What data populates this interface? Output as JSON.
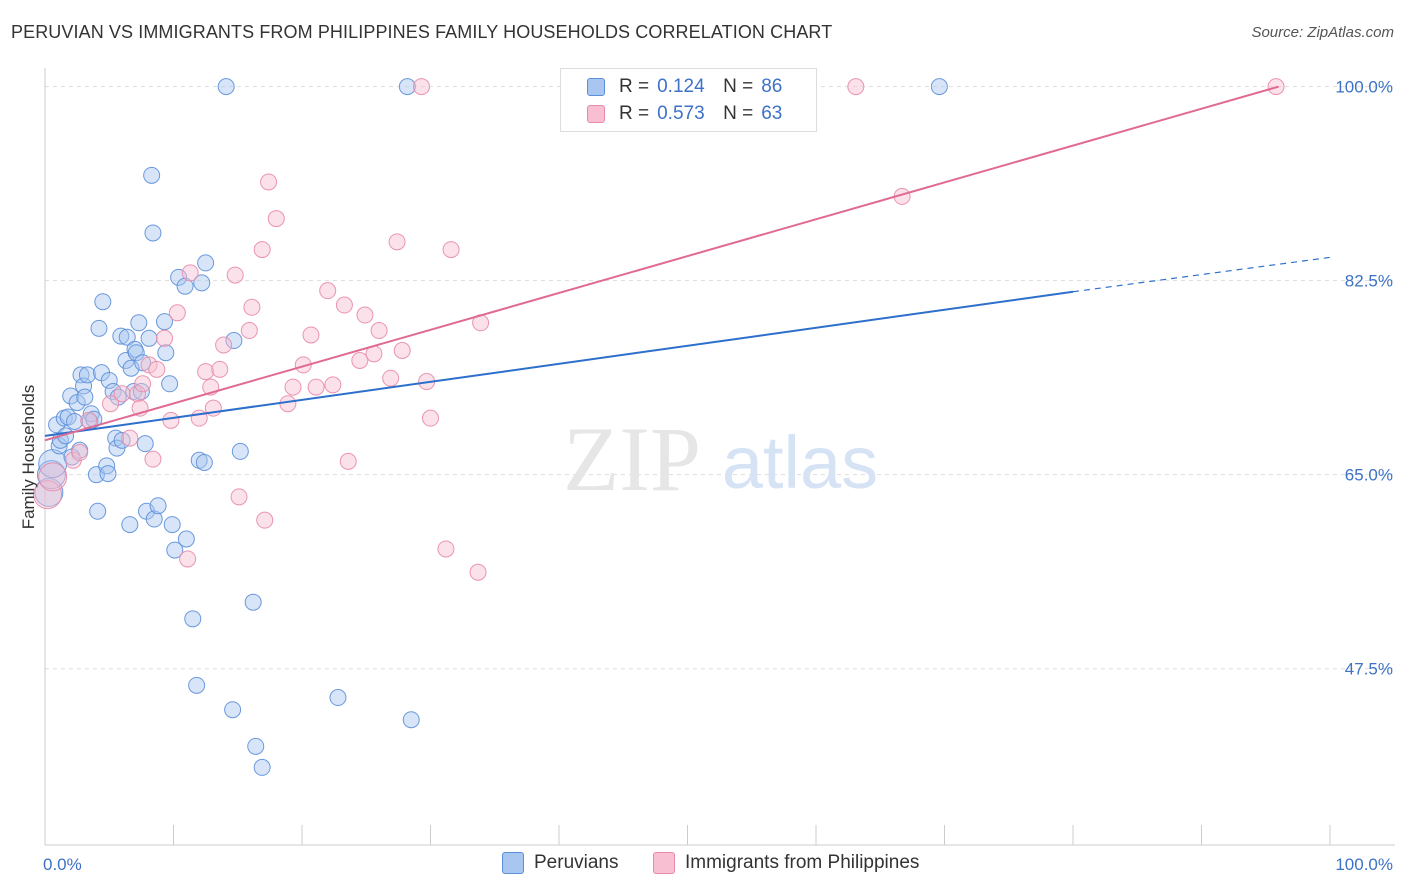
{
  "title": "PERUVIAN VS IMMIGRANTS FROM PHILIPPINES FAMILY HOUSEHOLDS CORRELATION CHART",
  "source": "Source: ZipAtlas.com",
  "watermark": {
    "zip": "ZIP",
    "atlas": "atlas"
  },
  "colors": {
    "blue_fill": "#a9c6f0",
    "blue_stroke": "#5b8fd9",
    "blue_line": "#2d6fcc",
    "pink_fill": "#f7bfd1",
    "pink_stroke": "#e88aa9",
    "pink_line": "#e06a92",
    "grid": "#dddddd",
    "axis_text": "#3d72c6"
  },
  "legend": {
    "r_label": "R =",
    "n_label": "N =",
    "series": [
      {
        "r": "0.124",
        "n": "86"
      },
      {
        "r": "0.573",
        "n": "63"
      }
    ]
  },
  "chart_data": {
    "type": "scatter",
    "ylabel": "Family Households",
    "xlim": [
      0,
      100
    ],
    "ylim": [
      31.6,
      101.5
    ],
    "y_ticks": [
      {
        "value": 100,
        "label": "100.0%"
      },
      {
        "value": 82.5,
        "label": "82.5%"
      },
      {
        "value": 65,
        "label": "65.0%"
      },
      {
        "value": 47.5,
        "label": "47.5%"
      }
    ],
    "x_tick_labels": {
      "left": "0.0%",
      "right": "100.0%"
    },
    "series": [
      {
        "name": "Peruvians",
        "trend": {
          "x0": 0,
          "y0": 68.5,
          "x1": 80,
          "y1": 81.5,
          "dash_to_x": 100,
          "dash_to_y": 84.6
        },
        "points": [
          [
            0.3,
            63.4
          ],
          [
            0.5,
            65.0
          ],
          [
            0.6,
            66.0
          ],
          [
            0.9,
            69.5
          ],
          [
            1.1,
            67.6
          ],
          [
            1.2,
            68.1
          ],
          [
            1.5,
            70.1
          ],
          [
            1.6,
            68.5
          ],
          [
            1.8,
            70.2
          ],
          [
            2.0,
            72.1
          ],
          [
            2.1,
            66.6
          ],
          [
            2.3,
            69.8
          ],
          [
            2.5,
            71.5
          ],
          [
            2.7,
            67.2
          ],
          [
            2.8,
            74.0
          ],
          [
            3.0,
            73.0
          ],
          [
            3.1,
            72.0
          ],
          [
            3.3,
            74.0
          ],
          [
            3.5,
            69.8
          ],
          [
            3.6,
            70.5
          ],
          [
            3.8,
            70.0
          ],
          [
            4.0,
            65.0
          ],
          [
            4.1,
            61.7
          ],
          [
            4.2,
            78.2
          ],
          [
            4.4,
            74.2
          ],
          [
            4.5,
            80.6
          ],
          [
            4.8,
            65.8
          ],
          [
            4.9,
            65.1
          ],
          [
            5.0,
            73.5
          ],
          [
            5.3,
            72.5
          ],
          [
            5.5,
            68.3
          ],
          [
            5.6,
            67.4
          ],
          [
            5.7,
            72.0
          ],
          [
            5.9,
            77.5
          ],
          [
            6.0,
            68.1
          ],
          [
            6.3,
            75.3
          ],
          [
            6.4,
            77.4
          ],
          [
            6.6,
            60.5
          ],
          [
            6.7,
            74.6
          ],
          [
            6.9,
            72.5
          ],
          [
            7.0,
            76.3
          ],
          [
            7.1,
            76.0
          ],
          [
            7.3,
            78.7
          ],
          [
            7.5,
            72.5
          ],
          [
            7.6,
            75.1
          ],
          [
            7.8,
            67.8
          ],
          [
            7.9,
            61.7
          ],
          [
            8.1,
            77.3
          ],
          [
            8.3,
            92.0
          ],
          [
            8.4,
            86.8
          ],
          [
            8.5,
            61.0
          ],
          [
            8.8,
            62.2
          ],
          [
            9.3,
            78.8
          ],
          [
            9.4,
            76.0
          ],
          [
            9.7,
            73.2
          ],
          [
            9.9,
            60.5
          ],
          [
            10.1,
            58.2
          ],
          [
            10.4,
            82.8
          ],
          [
            10.9,
            82.0
          ],
          [
            11.0,
            59.2
          ],
          [
            11.5,
            52.0
          ],
          [
            11.8,
            46.0
          ],
          [
            12.0,
            66.3
          ],
          [
            12.2,
            82.3
          ],
          [
            12.4,
            66.1
          ],
          [
            12.5,
            84.1
          ],
          [
            14.1,
            100.0
          ],
          [
            14.6,
            43.8
          ],
          [
            14.7,
            77.1
          ],
          [
            15.2,
            67.1
          ],
          [
            16.2,
            53.5
          ],
          [
            16.4,
            40.5
          ],
          [
            16.9,
            38.6
          ],
          [
            22.8,
            44.9
          ],
          [
            28.2,
            100.0
          ],
          [
            28.5,
            42.9
          ],
          [
            69.6,
            100.0
          ]
        ]
      },
      {
        "name": "Immigrants from Philippines",
        "trend": {
          "x0": 0,
          "y0": 68.1,
          "x1": 96,
          "y1": 100.0
        },
        "points": [
          [
            0.2,
            63.2
          ],
          [
            0.6,
            64.8
          ],
          [
            2.2,
            66.3
          ],
          [
            2.7,
            67.0
          ],
          [
            3.4,
            69.9
          ],
          [
            5.1,
            71.4
          ],
          [
            6.0,
            72.3
          ],
          [
            6.6,
            68.3
          ],
          [
            7.2,
            72.3
          ],
          [
            7.4,
            71.0
          ],
          [
            7.6,
            73.2
          ],
          [
            8.1,
            74.9
          ],
          [
            8.4,
            66.4
          ],
          [
            8.7,
            74.5
          ],
          [
            9.3,
            77.3
          ],
          [
            9.8,
            69.9
          ],
          [
            10.3,
            79.6
          ],
          [
            11.1,
            57.4
          ],
          [
            11.3,
            83.2
          ],
          [
            12.0,
            70.1
          ],
          [
            12.5,
            74.3
          ],
          [
            12.9,
            72.9
          ],
          [
            13.1,
            71.0
          ],
          [
            13.6,
            74.5
          ],
          [
            13.9,
            76.7
          ],
          [
            14.8,
            83.0
          ],
          [
            15.1,
            63.0
          ],
          [
            15.9,
            78.0
          ],
          [
            16.1,
            80.1
          ],
          [
            16.9,
            85.3
          ],
          [
            17.1,
            60.9
          ],
          [
            17.4,
            91.4
          ],
          [
            18.0,
            88.1
          ],
          [
            18.9,
            71.4
          ],
          [
            19.3,
            72.9
          ],
          [
            20.1,
            74.9
          ],
          [
            20.7,
            77.6
          ],
          [
            21.1,
            72.9
          ],
          [
            22.0,
            81.6
          ],
          [
            22.4,
            73.1
          ],
          [
            23.3,
            80.3
          ],
          [
            23.6,
            66.2
          ],
          [
            24.5,
            75.3
          ],
          [
            24.9,
            79.4
          ],
          [
            25.6,
            75.9
          ],
          [
            26.0,
            78.0
          ],
          [
            26.9,
            73.7
          ],
          [
            27.4,
            86.0
          ],
          [
            27.8,
            76.2
          ],
          [
            29.3,
            100.0
          ],
          [
            29.7,
            73.4
          ],
          [
            30.0,
            70.1
          ],
          [
            31.2,
            58.3
          ],
          [
            31.6,
            85.3
          ],
          [
            33.7,
            56.2
          ],
          [
            33.9,
            78.7
          ],
          [
            63.1,
            100.0
          ],
          [
            66.7,
            90.1
          ],
          [
            95.8,
            100.0
          ]
        ]
      }
    ]
  },
  "bottom_legend": {
    "items": [
      "Peruvians",
      "Immigrants from Philippines"
    ]
  }
}
